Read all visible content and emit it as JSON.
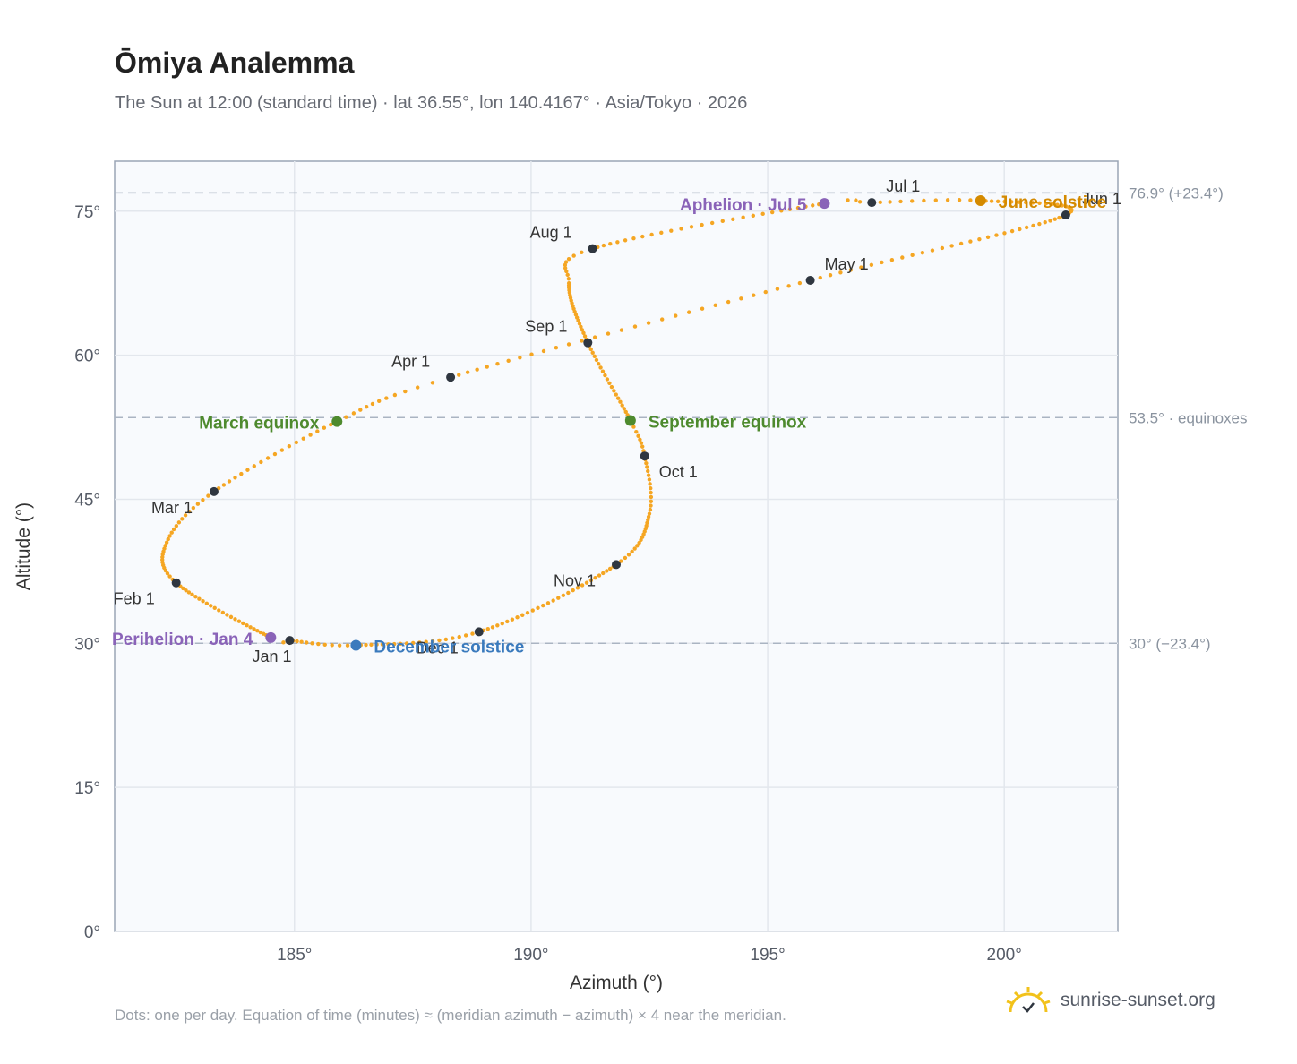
{
  "title": "Ōmiya Analemma",
  "subtitle": "The Sun at 12:00 (standard time) · lat 36.55°, lon 140.4167° · Asia/Tokyo · 2026",
  "footnote": "Dots: one per day. Equation of time (minutes) ≈ (meridian azimuth − azimuth) × 4 near the meridian.",
  "brand": "sunrise-sunset.org",
  "colors": {
    "curve": "#f5a623",
    "month_marker": "#2f3640",
    "equinox": "#4e8a2e",
    "june_solstice": "#d48a00",
    "december_solstice": "#3a7abd",
    "apsis": "#8a63b8",
    "reference_line": "#aab4c2",
    "plot_bg": "#f8fafd"
  },
  "chart_data": {
    "type": "scatter",
    "xlabel": "Azimuth (°)",
    "ylabel": "Altitude (°)",
    "xlim": [
      181.2,
      202.4
    ],
    "ylim": [
      0,
      80.2
    ],
    "x_ticks": [
      185,
      190,
      195,
      200
    ],
    "x_tick_labels": [
      "185°",
      "190°",
      "195°",
      "200°"
    ],
    "y_ticks": [
      0,
      15,
      30,
      45,
      60,
      75
    ],
    "y_tick_labels": [
      "0°",
      "15°",
      "30°",
      "45°",
      "60°",
      "75°"
    ],
    "grid": true,
    "reference_lines": [
      {
        "y": 76.9,
        "label": "76.9° (+23.4°)"
      },
      {
        "y": 53.5,
        "label": "53.5° · equinoxes"
      },
      {
        "y": 30.0,
        "label": "30° (−23.4°)"
      }
    ],
    "month_markers": [
      {
        "label": "Jan 1",
        "azimuth": 184.9,
        "altitude": 30.3
      },
      {
        "label": "Feb 1",
        "azimuth": 182.5,
        "altitude": 36.3
      },
      {
        "label": "Mar 1",
        "azimuth": 183.3,
        "altitude": 45.8
      },
      {
        "label": "Apr 1",
        "azimuth": 188.3,
        "altitude": 57.7
      },
      {
        "label": "May 1",
        "azimuth": 195.9,
        "altitude": 67.8
      },
      {
        "label": "Jun 1",
        "azimuth": 201.3,
        "altitude": 74.6
      },
      {
        "label": "Jul 1",
        "azimuth": 197.2,
        "altitude": 75.9
      },
      {
        "label": "Aug 1",
        "azimuth": 191.3,
        "altitude": 71.1
      },
      {
        "label": "Sep 1",
        "azimuth": 191.2,
        "altitude": 61.3
      },
      {
        "label": "Oct 1",
        "azimuth": 192.4,
        "altitude": 49.5
      },
      {
        "label": "Nov 1",
        "azimuth": 191.8,
        "altitude": 38.2
      },
      {
        "label": "Dec 1",
        "azimuth": 188.9,
        "altitude": 31.2
      }
    ],
    "events": [
      {
        "label": "March equinox",
        "azimuth": 185.9,
        "altitude": 53.1,
        "kind": "equinox"
      },
      {
        "label": "June solstice",
        "azimuth": 199.5,
        "altitude": 76.1,
        "kind": "june_solstice"
      },
      {
        "label": "September equinox",
        "azimuth": 192.1,
        "altitude": 53.2,
        "kind": "equinox"
      },
      {
        "label": "December solstice",
        "azimuth": 186.3,
        "altitude": 29.8,
        "kind": "december_solstice"
      },
      {
        "label": "Perihelion · Jan 4",
        "azimuth": 184.5,
        "altitude": 30.6,
        "kind": "apsis"
      },
      {
        "label": "Aphelion · Jul 5",
        "azimuth": 196.2,
        "altitude": 75.8,
        "kind": "apsis"
      }
    ]
  }
}
